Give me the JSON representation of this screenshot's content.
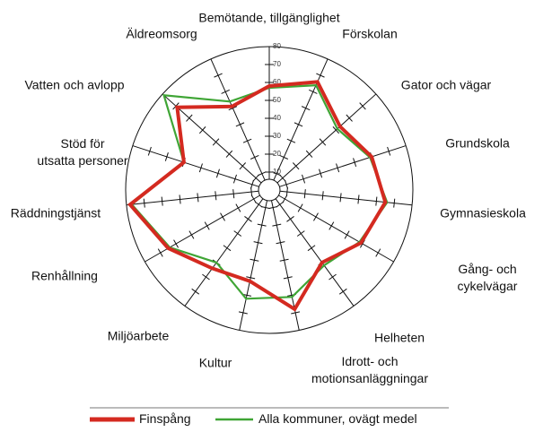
{
  "chart_data": {
    "type": "radar",
    "categories": [
      "Bemötande, tillgänglighet",
      "Förskolan",
      "Gator och vägar",
      "Grundskola",
      "Gymnasieskola",
      "Gång- och cykelvägar",
      "Helheten",
      "Idrott- och\nmotionsanläggningar",
      "Kultur",
      "Miljöarbete",
      "Renhållning",
      "Räddningstjänst",
      "Stöd för\nutsatta personer",
      "Vatten och avlopp",
      "Äldreomsorg"
    ],
    "series": [
      {
        "name": "Finspång",
        "color": "#d42a20",
        "values": [
          58,
          66,
          53,
          60,
          65,
          59,
          50,
          68,
          52,
          54,
          65,
          78,
          50,
          69,
          51
        ]
      },
      {
        "name": "Alla kommuner, ovägt medel",
        "color": "#3fa535",
        "values": [
          57,
          64,
          51,
          59,
          66,
          58,
          52,
          61,
          62,
          50,
          64,
          77,
          50,
          79,
          54
        ]
      }
    ],
    "ylim": [
      0,
      80
    ],
    "yticks": [
      10,
      20,
      30,
      40,
      50,
      60,
      70,
      80
    ],
    "grid": true,
    "legend": "bottom"
  }
}
